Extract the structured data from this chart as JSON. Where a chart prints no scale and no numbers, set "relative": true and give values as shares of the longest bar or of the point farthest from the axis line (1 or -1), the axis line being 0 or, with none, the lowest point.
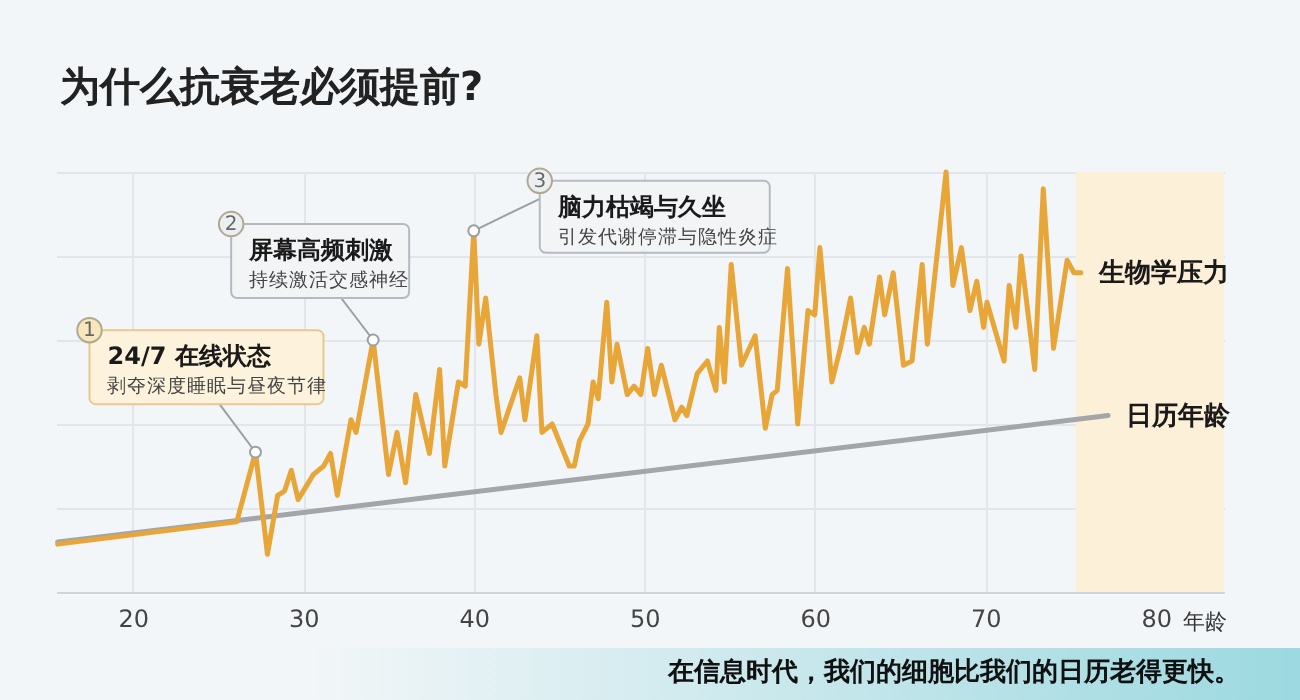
{
  "chart_data": {
    "type": "line",
    "title": "为什么抗衰老必须提前?",
    "xlabel": "年龄",
    "relative": true,
    "xlim": [
      15.5,
      84
    ],
    "xticks": [
      20,
      30,
      40,
      50,
      60,
      70,
      80
    ],
    "grid": true,
    "tick_labels": "x",
    "series": [
      {
        "name": "日历年龄",
        "color": "#a3a5a8",
        "x": [
          15.6,
          77.2
        ],
        "values": [
          0.119,
          0.42
        ]
      },
      {
        "name": "生物学压力",
        "color": "#e8a638",
        "x": [
          15.6,
          26.1,
          27.2,
          27.9,
          28.5,
          28.9,
          29.3,
          29.7,
          30.6,
          31.2,
          31.6,
          32.0,
          32.8,
          33.1,
          34.1,
          35.0,
          35.5,
          36.0,
          36.6,
          37.4,
          38.0,
          38.3,
          39.1,
          39.5,
          40.0,
          40.3,
          40.7,
          41.3,
          41.6,
          42.7,
          43.0,
          43.7,
          44.0,
          44.6,
          45.6,
          45.9,
          46.2,
          46.7,
          47.0,
          47.3,
          47.8,
          48.1,
          48.4,
          49.0,
          49.4,
          49.8,
          50.2,
          50.6,
          51.0,
          51.8,
          52.2,
          52.5,
          53.1,
          53.7,
          54.2,
          54.4,
          54.7,
          55.1,
          55.7,
          56.5,
          57.1,
          57.5,
          57.8,
          58.4,
          59.0,
          59.6,
          60.0,
          60.3,
          61.0,
          61.5,
          62.1,
          62.5,
          62.9,
          63.2,
          63.8,
          64.1,
          64.6,
          65.2,
          65.7,
          66.3,
          66.6,
          67.7,
          68.1,
          68.6,
          69.1,
          69.5,
          69.9,
          70.1,
          71.1,
          71.4,
          71.8,
          72.1,
          72.9,
          73.4,
          74.0,
          74.8,
          75.2,
          75.6
        ],
        "values": [
          0.114,
          0.167,
          0.333,
          0.09,
          0.23,
          0.24,
          0.29,
          0.22,
          0.28,
          0.3,
          0.33,
          0.23,
          0.41,
          0.38,
          0.6,
          0.28,
          0.38,
          0.26,
          0.47,
          0.33,
          0.53,
          0.3,
          0.5,
          0.49,
          0.86,
          0.59,
          0.7,
          0.47,
          0.38,
          0.51,
          0.41,
          0.61,
          0.38,
          0.4,
          0.3,
          0.3,
          0.36,
          0.4,
          0.5,
          0.46,
          0.69,
          0.5,
          0.59,
          0.47,
          0.49,
          0.47,
          0.58,
          0.47,
          0.54,
          0.41,
          0.44,
          0.42,
          0.52,
          0.55,
          0.48,
          0.63,
          0.5,
          0.78,
          0.54,
          0.61,
          0.39,
          0.47,
          0.48,
          0.77,
          0.4,
          0.67,
          0.66,
          0.82,
          0.5,
          0.58,
          0.7,
          0.57,
          0.63,
          0.59,
          0.75,
          0.66,
          0.76,
          0.54,
          0.55,
          0.78,
          0.59,
          1,
          0.73,
          0.82,
          0.67,
          0.74,
          0.63,
          0.69,
          0.55,
          0.73,
          0.63,
          0.8,
          0.53,
          0.96,
          0.58,
          0.79,
          0.76,
          0.76
        ]
      }
    ],
    "bands": [
      {
        "axis": "x",
        "from": 75.3,
        "to": 84,
        "color": "#fcf0d8"
      }
    ],
    "annotations": [
      "1",
      "24/7 在线状态",
      {
        "text": "剥夺深度睡眠与昼夜节律",
        "x": 27.2,
        "y": 0.333
      },
      "2",
      "屏幕高频刺激",
      {
        "text": "持续激活交感神经",
        "x": 34.1,
        "y": 0.6
      },
      "3",
      {
        "text": "脑力枯竭与久坐",
        "x": 40.0,
        "y": 0.86
      },
      "引发代谢停滞与隐性炎症",
      "在信息时代，我们的细胞比我们的日历老得更快。"
    ]
  }
}
